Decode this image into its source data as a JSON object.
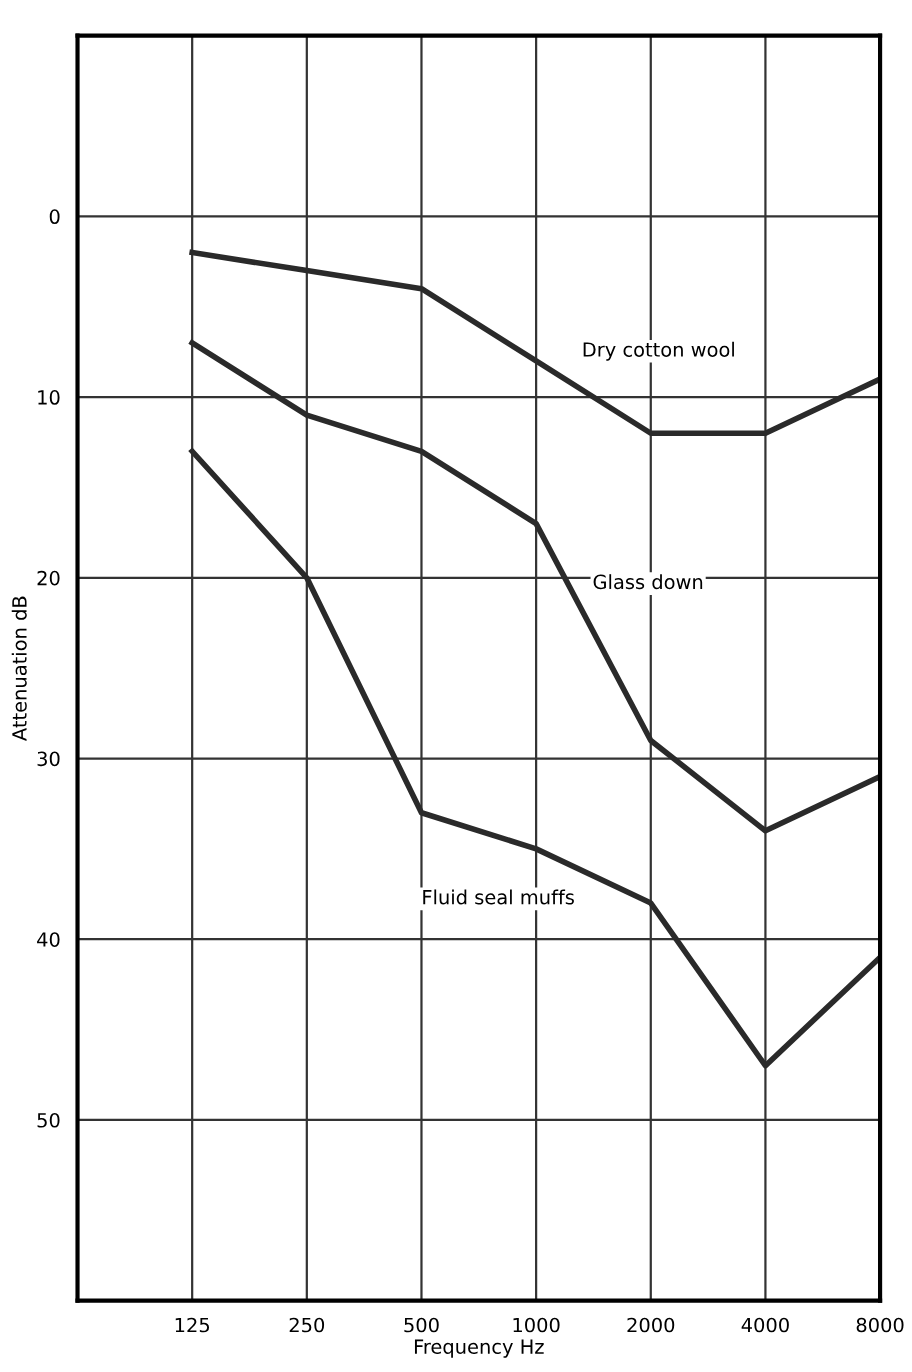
{
  "chart_data": {
    "type": "line",
    "xlabel": "Frequency Hz",
    "ylabel": "Attenuation dB",
    "x": [
      125,
      250,
      500,
      1000,
      2000,
      4000,
      8000
    ],
    "series": [
      {
        "name": "Dry cotton wool",
        "color": "#2a2a2a",
        "values": [
          2,
          3,
          4,
          8,
          12,
          12,
          9
        ]
      },
      {
        "name": "Glass down",
        "color": "#2a2a2a",
        "values": [
          7,
          11,
          13,
          17,
          29,
          34,
          31
        ]
      },
      {
        "name": "Fluid seal muffs",
        "color": "#2a2a2a",
        "values": [
          13,
          20,
          33,
          35,
          38,
          47,
          41
        ]
      }
    ],
    "log": "x",
    "xlim": [
      62.5,
      8000
    ],
    "xticks": [
      125,
      250,
      500,
      1000,
      2000,
      4000,
      8000
    ],
    "ylim": [
      60,
      -10
    ],
    "yticks": [
      0,
      10,
      20,
      30,
      40,
      50
    ],
    "grid": true,
    "marker": "none",
    "line_style": "solid",
    "legend": false
  }
}
